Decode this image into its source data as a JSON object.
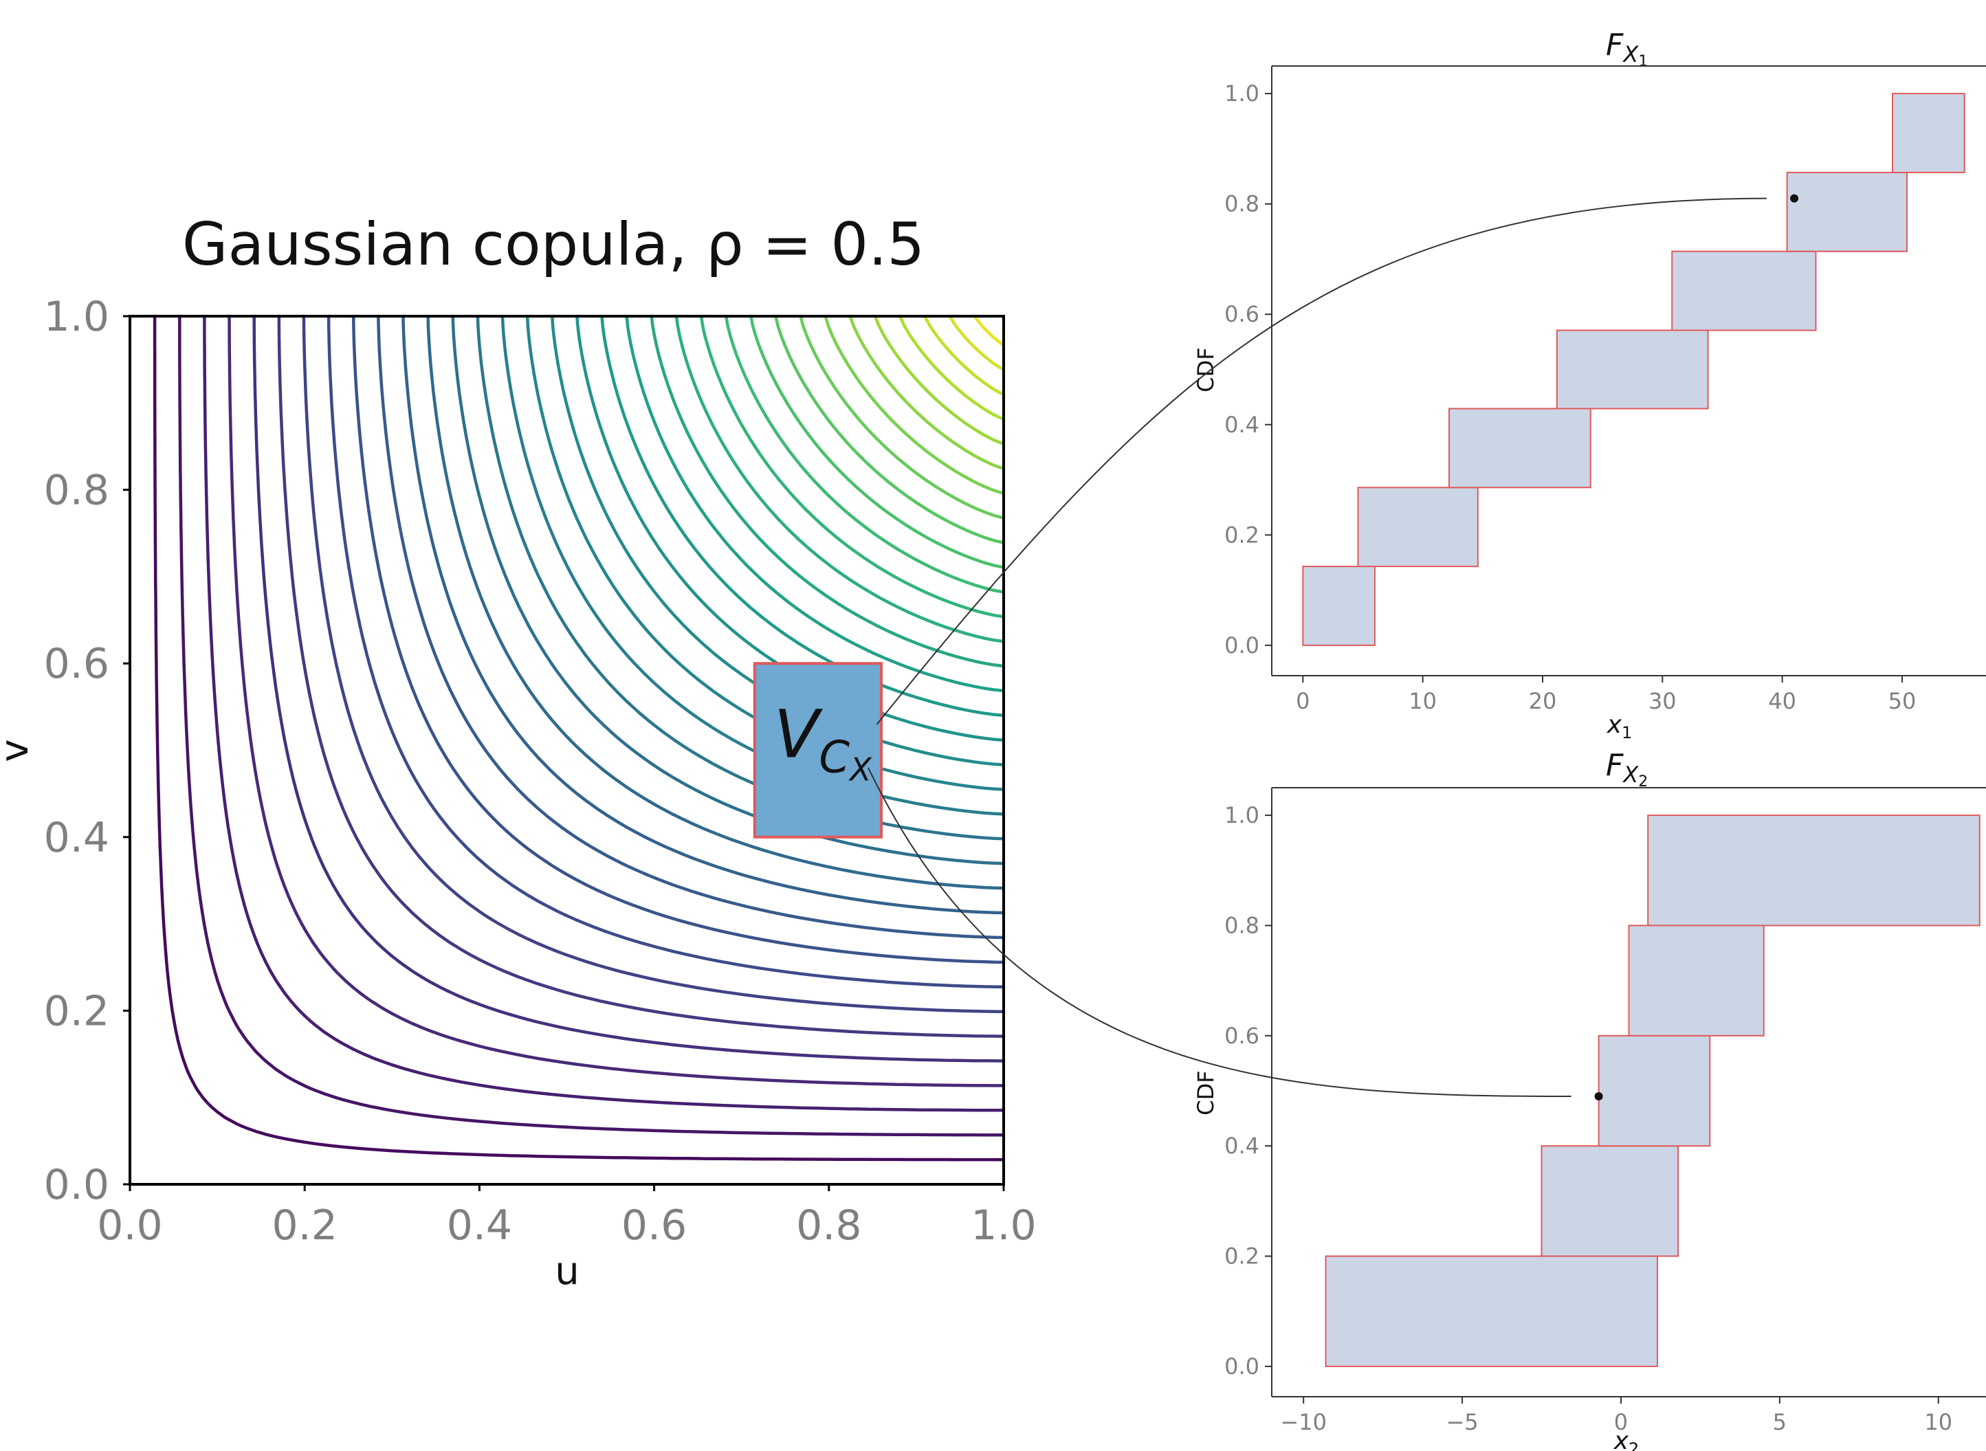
{
  "figure": {
    "background": "#ffffff"
  },
  "chart_data": [
    {
      "id": "copula",
      "type": "contour",
      "title": "Gaussian copula, ρ = 0.5",
      "xlabel": "u",
      "ylabel": "v",
      "xlim": [
        0,
        1
      ],
      "ylim": [
        0,
        1
      ],
      "xticks": [
        "0.0",
        "0.2",
        "0.4",
        "0.6",
        "0.8",
        "1.0"
      ],
      "yticks": [
        "0.0",
        "0.2",
        "0.4",
        "0.6",
        "0.8",
        "1.0"
      ],
      "rho": 0.5,
      "contour_levels": 34,
      "colormap": "viridis",
      "rectangle": {
        "x0": 0.715,
        "x1": 0.86,
        "y0": 0.4,
        "y1": 0.6,
        "fill": "#6fa8d0",
        "edge": "#e05a5a"
      },
      "rectangle_label": {
        "main": "V",
        "subscript": "C",
        "sub_subscript": "X"
      }
    },
    {
      "id": "cdf1",
      "type": "step-cdf",
      "title": {
        "main": "F",
        "subscript": "X",
        "sub_subscript": "1"
      },
      "xlabel": {
        "main": "x",
        "subscript": "1"
      },
      "ylabel": "CDF",
      "xlim": [
        -2.6,
        57
      ],
      "ylim": [
        -0.055,
        1.05
      ],
      "xticks": [
        "0",
        "10",
        "20",
        "30",
        "40",
        "50"
      ],
      "xtick_values": [
        0,
        10,
        20,
        30,
        40,
        50
      ],
      "yticks": [
        "0.0",
        "0.2",
        "0.4",
        "0.6",
        "0.8",
        "1.0"
      ],
      "ytick_values": [
        0,
        0.2,
        0.4,
        0.6,
        0.8,
        1.0
      ],
      "boxes": [
        {
          "x0": 0,
          "x1": 6,
          "y0": 0.0,
          "y1": 0.143
        },
        {
          "x0": 4.6,
          "x1": 14.6,
          "y0": 0.143,
          "y1": 0.286
        },
        {
          "x0": 12.2,
          "x1": 24,
          "y0": 0.286,
          "y1": 0.429
        },
        {
          "x0": 21.2,
          "x1": 33.8,
          "y0": 0.429,
          "y1": 0.571
        },
        {
          "x0": 30.8,
          "x1": 42.8,
          "y0": 0.571,
          "y1": 0.714
        },
        {
          "x0": 40.4,
          "x1": 50.4,
          "y0": 0.714,
          "y1": 0.857
        },
        {
          "x0": 49.2,
          "x1": 55.2,
          "y0": 0.857,
          "y1": 1.0
        }
      ],
      "box_fill": "#cbd5e6",
      "box_edge": "#e05a5a",
      "point": {
        "x": 41,
        "y": 0.81
      }
    },
    {
      "id": "cdf2",
      "type": "step-cdf",
      "title": {
        "main": "F",
        "subscript": "X",
        "sub_subscript": "2"
      },
      "xlabel": {
        "main": "x",
        "subscript": "2"
      },
      "ylabel": "CDF",
      "xlim": [
        -11,
        11.5
      ],
      "ylim": [
        -0.055,
        1.05
      ],
      "xticks": [
        "−10",
        "−5",
        "0",
        "5",
        "10"
      ],
      "xtick_values": [
        -10,
        -5,
        0,
        5,
        10
      ],
      "yticks": [
        "0.0",
        "0.2",
        "0.4",
        "0.6",
        "0.8",
        "1.0"
      ],
      "ytick_values": [
        0,
        0.2,
        0.4,
        0.6,
        0.8,
        1.0
      ],
      "boxes": [
        {
          "x0": -9.3,
          "x1": 1.15,
          "y0": 0.0,
          "y1": 0.2
        },
        {
          "x0": -2.5,
          "x1": 1.8,
          "y0": 0.2,
          "y1": 0.4
        },
        {
          "x0": -0.7,
          "x1": 2.8,
          "y0": 0.4,
          "y1": 0.6
        },
        {
          "x0": 0.25,
          "x1": 4.5,
          "y0": 0.6,
          "y1": 0.8
        },
        {
          "x0": 0.85,
          "x1": 11.3,
          "y0": 0.8,
          "y1": 1.0
        }
      ],
      "box_fill": "#cbd5e6",
      "box_edge": "#e05a5a",
      "point": {
        "x": -0.7,
        "y": 0.49
      }
    }
  ]
}
